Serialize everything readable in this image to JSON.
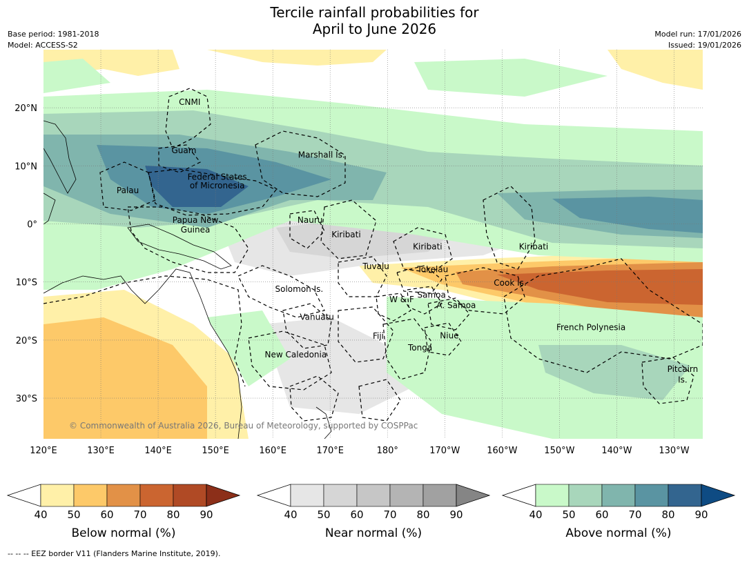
{
  "title_line1": "Tercile rainfall probabilities for",
  "title_line2": "April to June 2026",
  "meta_left": [
    "Base period: 1981-2018",
    "Model: ACCESS-S2"
  ],
  "meta_right": [
    "Model run: 17/01/2026",
    "Issued: 19/01/2026"
  ],
  "map": {
    "lon_range": [
      120,
      235
    ],
    "lat_range": [
      -37,
      30
    ],
    "lon_ticks": [
      {
        "lon": 120,
        "label": "120°E"
      },
      {
        "lon": 130,
        "label": "130°E"
      },
      {
        "lon": 140,
        "label": "140°E"
      },
      {
        "lon": 150,
        "label": "150°E"
      },
      {
        "lon": 160,
        "label": "160°E"
      },
      {
        "lon": 170,
        "label": "170°E"
      },
      {
        "lon": 180,
        "label": "180°"
      },
      {
        "lon": 190,
        "label": "170°W"
      },
      {
        "lon": 200,
        "label": "160°W"
      },
      {
        "lon": 210,
        "label": "150°W"
      },
      {
        "lon": 220,
        "label": "140°W"
      },
      {
        "lon": 230,
        "label": "130°W"
      }
    ],
    "lat_ticks": [
      {
        "lat": 20,
        "label": "20°N"
      },
      {
        "lat": 10,
        "label": "10°N"
      },
      {
        "lat": 0,
        "label": "0°"
      },
      {
        "lat": -10,
        "label": "10°S"
      },
      {
        "lat": -20,
        "label": "20°S"
      },
      {
        "lat": -30,
        "label": "30°S"
      }
    ],
    "labels": [
      {
        "text": "CNMI",
        "lon": 145.5,
        "lat": 20.5
      },
      {
        "text": "Guam",
        "lon": 144.5,
        "lat": 12.2
      },
      {
        "text": "Palau",
        "lon": 134.7,
        "lat": 5.3
      },
      {
        "text": "Federal States",
        "lon": 150.3,
        "lat": 7.6
      },
      {
        "text": "of Micronesia",
        "lon": 150.3,
        "lat": 6.1
      },
      {
        "text": "Marshall Is.",
        "lon": 168.5,
        "lat": 11.4
      },
      {
        "text": "Papua New",
        "lon": 146.5,
        "lat": 0.2
      },
      {
        "text": "Guinea",
        "lon": 146.5,
        "lat": -1.5
      },
      {
        "text": "Nauru",
        "lon": 166.5,
        "lat": 0.2
      },
      {
        "text": "Kiribati",
        "lon": 172.8,
        "lat": -2.3
      },
      {
        "text": "Kiribati",
        "lon": 187.0,
        "lat": -4.4
      },
      {
        "text": "Kiribati",
        "lon": 205.5,
        "lat": -4.4
      },
      {
        "text": "Tuvalu",
        "lon": 178.0,
        "lat": -7.8
      },
      {
        "text": "Tokelau",
        "lon": 187.9,
        "lat": -8.3
      },
      {
        "text": "Cook Is.",
        "lon": 201.4,
        "lat": -10.6
      },
      {
        "text": "Solomon Is.",
        "lon": 164.6,
        "lat": -11.7
      },
      {
        "text": "Samoa",
        "lon": 187.7,
        "lat": -12.7
      },
      {
        "text": "W & F",
        "lon": 182.5,
        "lat": -13.5
      },
      {
        "text": "A. Samoa",
        "lon": 192.0,
        "lat": -14.5
      },
      {
        "text": "Vanuatu",
        "lon": 167.7,
        "lat": -16.5
      },
      {
        "text": "French Polynesia",
        "lon": 215.5,
        "lat": -18.3
      },
      {
        "text": "Fiji",
        "lon": 178.4,
        "lat": -19.8
      },
      {
        "text": "Niue",
        "lon": 190.8,
        "lat": -19.7
      },
      {
        "text": "Tonga",
        "lon": 185.7,
        "lat": -21.8
      },
      {
        "text": "New Caledonia",
        "lon": 164.0,
        "lat": -23.0
      },
      {
        "text": "Pitcairn",
        "lon": 231.5,
        "lat": -25.5
      },
      {
        "text": "Is.",
        "lon": 231.5,
        "lat": -27.3
      }
    ],
    "copyright": "© Commonwealth of Australia 2026, Bureau of Meteorology, supported by COSPPac"
  },
  "colorbars": [
    {
      "title": "Below normal (%)",
      "ticks": [
        "40",
        "50",
        "60",
        "70",
        "80",
        "90"
      ],
      "colors": [
        "#ffffff",
        "#fff0a8",
        "#fdc969",
        "#e29147",
        "#cb6530",
        "#b04a25",
        "#8c2f19"
      ]
    },
    {
      "title": "Near normal (%)",
      "ticks": [
        "40",
        "50",
        "60",
        "70",
        "80",
        "90"
      ],
      "colors": [
        "#ffffff",
        "#e6e6e6",
        "#d6d6d6",
        "#c6c6c6",
        "#b4b4b4",
        "#a1a1a1",
        "#858585"
      ]
    },
    {
      "title": "Above normal (%)",
      "ticks": [
        "40",
        "50",
        "60",
        "70",
        "80",
        "90"
      ],
      "colors": [
        "#ffffff",
        "#c9f9c9",
        "#a8d6bb",
        "#80b5ad",
        "#5a94a2",
        "#33658f",
        "#0e4b83"
      ]
    }
  ],
  "footnote": "--  --  -- EEZ border V11 (Flanders Marine Institute, 2019)."
}
